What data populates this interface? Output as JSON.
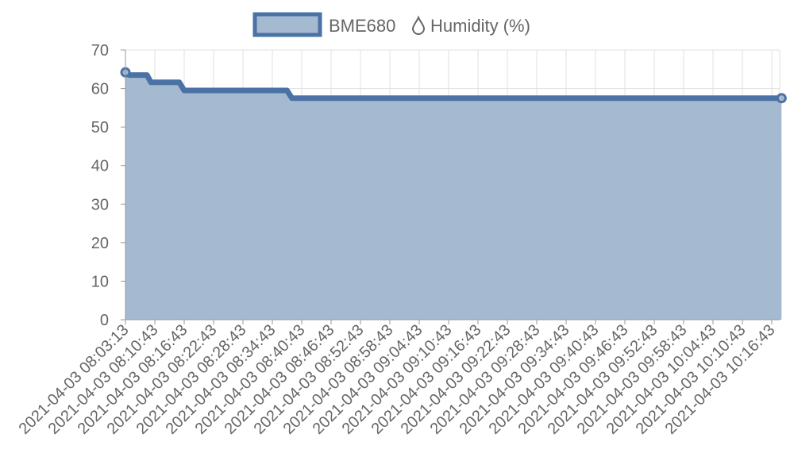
{
  "chart_data": {
    "type": "area",
    "legend": {
      "position": "top",
      "label": "BME680 💧︎ Humidity (%)",
      "label_text": "BME680",
      "label_suffix": "Humidity (%)",
      "icon": "droplet-icon"
    },
    "colors": {
      "line": "#4a72a4",
      "fill": "#a5b9d1",
      "grid": "#e0e0e0",
      "axis": "#999999",
      "text": "#666666"
    },
    "grid": true,
    "y_ticks": [
      0,
      10,
      20,
      30,
      40,
      50,
      60,
      70
    ],
    "ylim": [
      0,
      70
    ],
    "x_ticks": [
      "2021-04-03 08:03:13",
      "2021-04-03 08:10:43",
      "2021-04-03 08:16:43",
      "2021-04-03 08:22:43",
      "2021-04-03 08:28:43",
      "2021-04-03 08:34:43",
      "2021-04-03 08:40:43",
      "2021-04-03 08:46:43",
      "2021-04-03 08:52:43",
      "2021-04-03 08:58:43",
      "2021-04-03 09:04:43",
      "2021-04-03 09:10:43",
      "2021-04-03 09:16:43",
      "2021-04-03 09:22:43",
      "2021-04-03 09:28:43",
      "2021-04-03 09:34:43",
      "2021-04-03 09:40:43",
      "2021-04-03 09:46:43",
      "2021-04-03 09:52:43",
      "2021-04-03 09:58:43",
      "2021-04-03 10:04:43",
      "2021-04-03 10:10:43",
      "2021-04-03 10:16:43"
    ],
    "series": [
      {
        "name": "BME680 Humidity (%)",
        "points": [
          {
            "x": "2021-04-03 08:03:13",
            "y": 64.2
          },
          {
            "x": "2021-04-03 08:04:13",
            "y": 63.5
          },
          {
            "x": "2021-04-03 08:08:43",
            "y": 63.5
          },
          {
            "x": "2021-04-03 08:09:43",
            "y": 61.6
          },
          {
            "x": "2021-04-03 08:15:43",
            "y": 61.6
          },
          {
            "x": "2021-04-03 08:16:43",
            "y": 59.5
          },
          {
            "x": "2021-04-03 08:37:43",
            "y": 59.5
          },
          {
            "x": "2021-04-03 08:38:43",
            "y": 57.5
          },
          {
            "x": "2021-04-03 10:18:43",
            "y": 57.5
          }
        ]
      }
    ]
  }
}
